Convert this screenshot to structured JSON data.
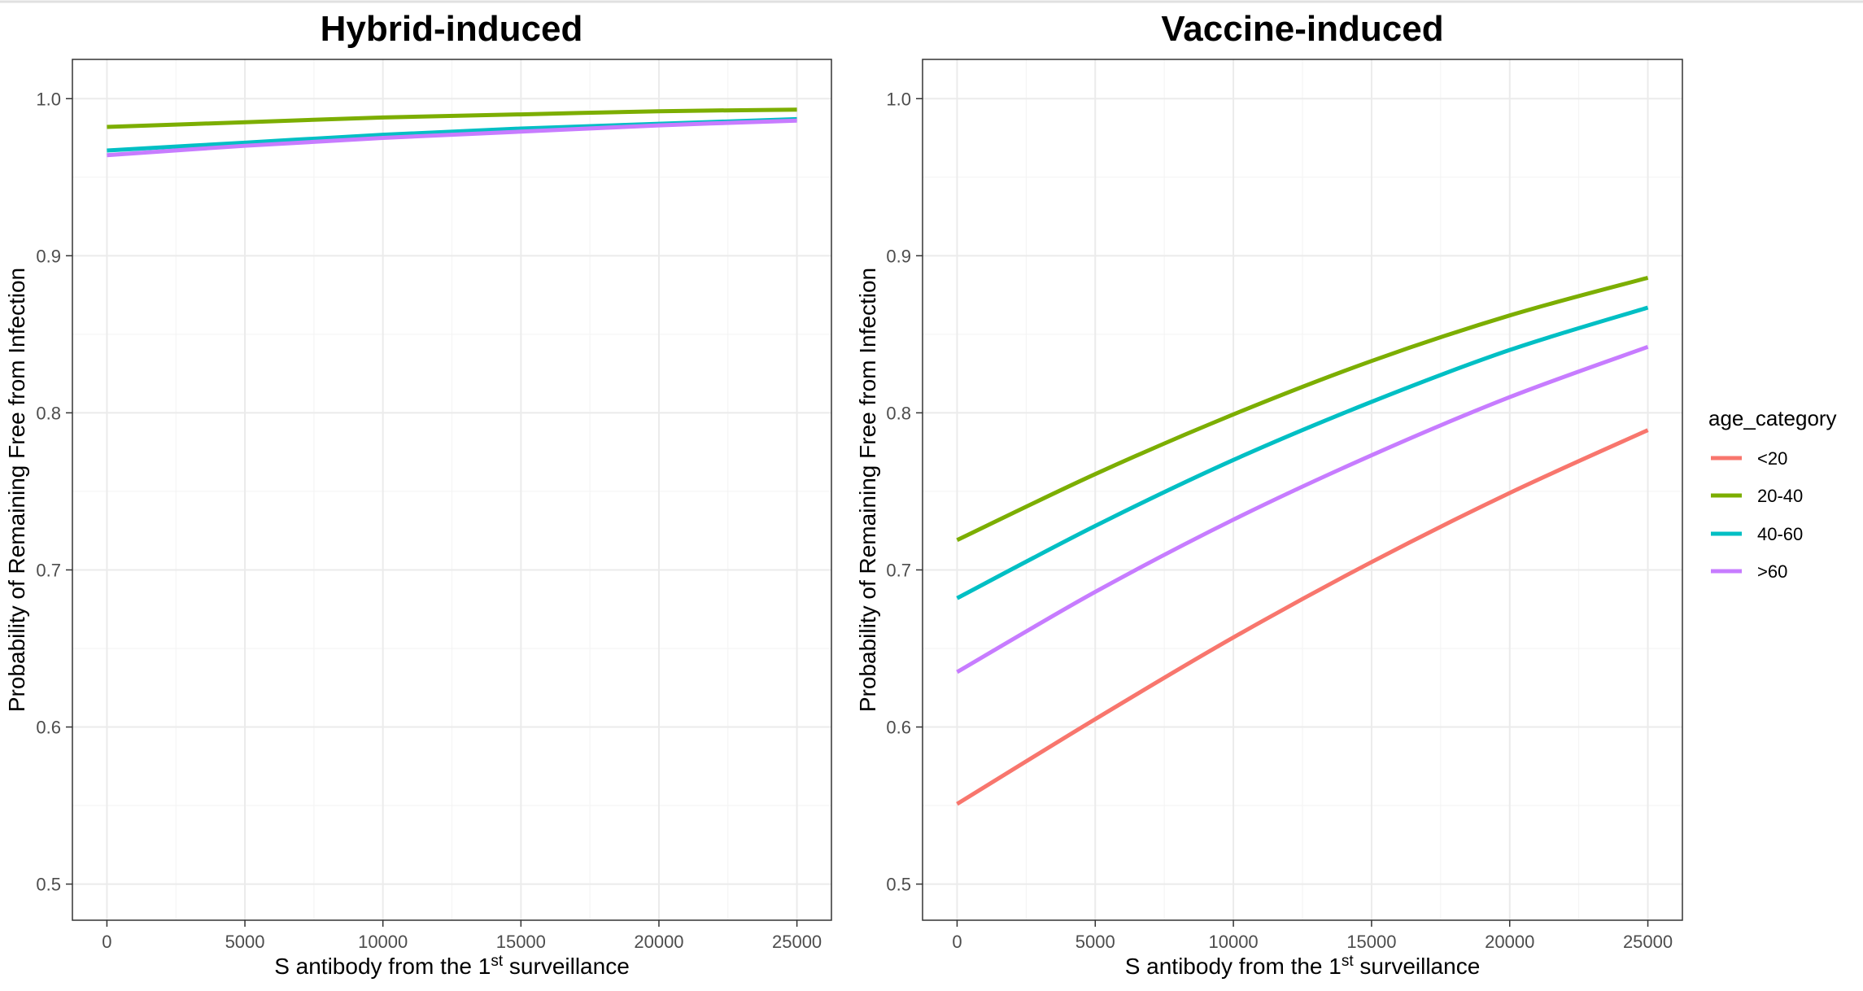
{
  "chart_data": [
    {
      "type": "line",
      "title": "Hybrid-induced",
      "xlabel": "S antibody from the 1st surveillance",
      "xlabel_parts": [
        "S antibody from the 1",
        "st",
        " surveillance"
      ],
      "ylabel": "Probability of Remaining Free from Infection",
      "xlim": [
        -1250,
        26250
      ],
      "ylim": [
        0.477,
        1.025
      ],
      "xticks": [
        0,
        5000,
        10000,
        15000,
        20000,
        25000
      ],
      "xtick_labels": [
        "0",
        "5000",
        "10000",
        "15000",
        "20000",
        "25000"
      ],
      "yticks": [
        0.5,
        0.6,
        0.7,
        0.8,
        0.9,
        1.0
      ],
      "ytick_labels": [
        "0.5",
        "0.6",
        "0.7",
        "0.8",
        "0.9",
        "1.0"
      ],
      "grid": true,
      "x": [
        0,
        5000,
        10000,
        15000,
        20000,
        25000
      ],
      "series": [
        {
          "name": "20-40",
          "color": "#7CAE00",
          "values": [
            0.982,
            0.985,
            0.988,
            0.99,
            0.992,
            0.993
          ]
        },
        {
          "name": "40-60",
          "color": "#00BFC4",
          "values": [
            0.967,
            0.972,
            0.977,
            0.981,
            0.984,
            0.987
          ]
        },
        {
          "name": ">60",
          "color": "#C77CFF",
          "values": [
            0.964,
            0.97,
            0.975,
            0.979,
            0.983,
            0.986
          ]
        }
      ]
    },
    {
      "type": "line",
      "title": "Vaccine-induced",
      "xlabel": "S antibody from the 1st surveillance",
      "xlabel_parts": [
        "S antibody from the 1",
        "st",
        " surveillance"
      ],
      "ylabel": "Probability of Remaining Free from Infection",
      "xlim": [
        -1250,
        26250
      ],
      "ylim": [
        0.477,
        1.025
      ],
      "xticks": [
        0,
        5000,
        10000,
        15000,
        20000,
        25000
      ],
      "xtick_labels": [
        "0",
        "5000",
        "10000",
        "15000",
        "20000",
        "25000"
      ],
      "yticks": [
        0.5,
        0.6,
        0.7,
        0.8,
        0.9,
        1.0
      ],
      "ytick_labels": [
        "0.5",
        "0.6",
        "0.7",
        "0.8",
        "0.9",
        "1.0"
      ],
      "grid": true,
      "x": [
        0,
        5000,
        10000,
        15000,
        20000,
        25000
      ],
      "series": [
        {
          "name": "<20",
          "color": "#F8766D",
          "values": [
            0.551,
            0.605,
            0.657,
            0.705,
            0.749,
            0.789
          ]
        },
        {
          "name": "20-40",
          "color": "#7CAE00",
          "values": [
            0.719,
            0.761,
            0.799,
            0.833,
            0.862,
            0.886
          ]
        },
        {
          "name": "40-60",
          "color": "#00BFC4",
          "values": [
            0.682,
            0.728,
            0.77,
            0.807,
            0.84,
            0.867
          ]
        },
        {
          "name": ">60",
          "color": "#C77CFF",
          "values": [
            0.635,
            0.686,
            0.732,
            0.773,
            0.81,
            0.842
          ]
        }
      ]
    }
  ],
  "legend": {
    "title": "age_category",
    "position": "right",
    "items": [
      {
        "label": "<20",
        "color": "#F8766D"
      },
      {
        "label": "20-40",
        "color": "#7CAE00"
      },
      {
        "label": "40-60",
        "color": "#00BFC4"
      },
      {
        "label": ">60",
        "color": "#C77CFF"
      }
    ]
  }
}
